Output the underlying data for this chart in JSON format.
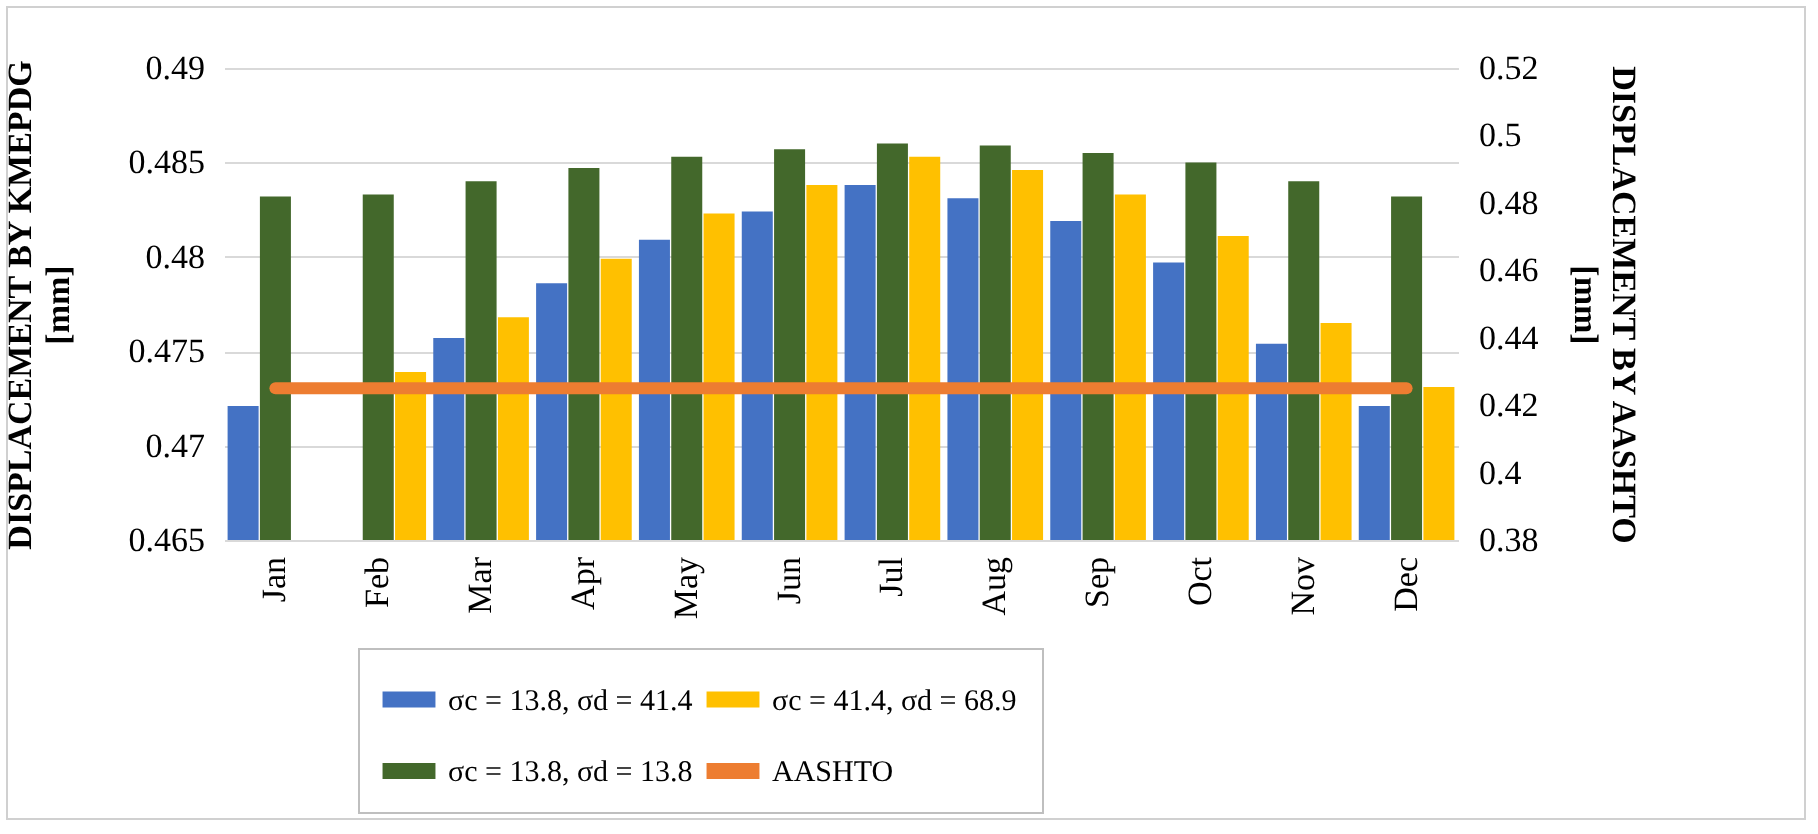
{
  "chart_data": {
    "type": "bar",
    "ylabel": "DISPLACEMENT BY KMEPDG\n[mm]",
    "y2label": "DISPLACEMENT BY AASHTO\n[mm]",
    "categories": [
      "Jan",
      "Feb",
      "Mar",
      "Apr",
      "May",
      "Jun",
      "Jul",
      "Aug",
      "Sep",
      "Oct",
      "Nov",
      "Dec"
    ],
    "series": [
      {
        "name": "σc = 13.8, σd = 41.4",
        "color": "#4472c4",
        "values": [
          0.4721,
          null,
          0.4757,
          0.4786,
          0.4809,
          0.4824,
          0.4838,
          0.4831,
          0.4819,
          0.4797,
          0.4754,
          0.4721
        ]
      },
      {
        "name": "σc = 13.8, σd = 13.8",
        "color": "#43682b",
        "values": [
          0.4832,
          0.4833,
          0.484,
          0.4847,
          0.4853,
          0.4857,
          0.486,
          0.4859,
          0.4855,
          0.485,
          0.484,
          0.4832
        ]
      },
      {
        "name": "σc = 41.4, σd = 68.9",
        "color": "#ffc000",
        "values": [
          null,
          0.4739,
          0.4768,
          0.4799,
          0.4823,
          0.4838,
          0.4853,
          0.4846,
          0.4833,
          0.4811,
          0.4765,
          0.4731
        ]
      },
      {
        "name": "AASHTO",
        "color": "#ed7d31",
        "type": "line",
        "axis": "y2",
        "values": [
          0.425,
          0.425,
          0.425,
          0.425,
          0.425,
          0.425,
          0.425,
          0.425,
          0.425,
          0.425,
          0.425,
          0.425
        ]
      }
    ],
    "ylim": [
      0.465,
      0.49
    ],
    "yticks": [
      0.465,
      0.47,
      0.475,
      0.48,
      0.485,
      0.49
    ],
    "y2lim": [
      0.38,
      0.52
    ],
    "y2ticks": [
      0.38,
      0.4,
      0.42,
      0.44,
      0.46,
      0.48,
      0.5,
      0.52
    ],
    "grid": "y",
    "legend": "bottom"
  }
}
